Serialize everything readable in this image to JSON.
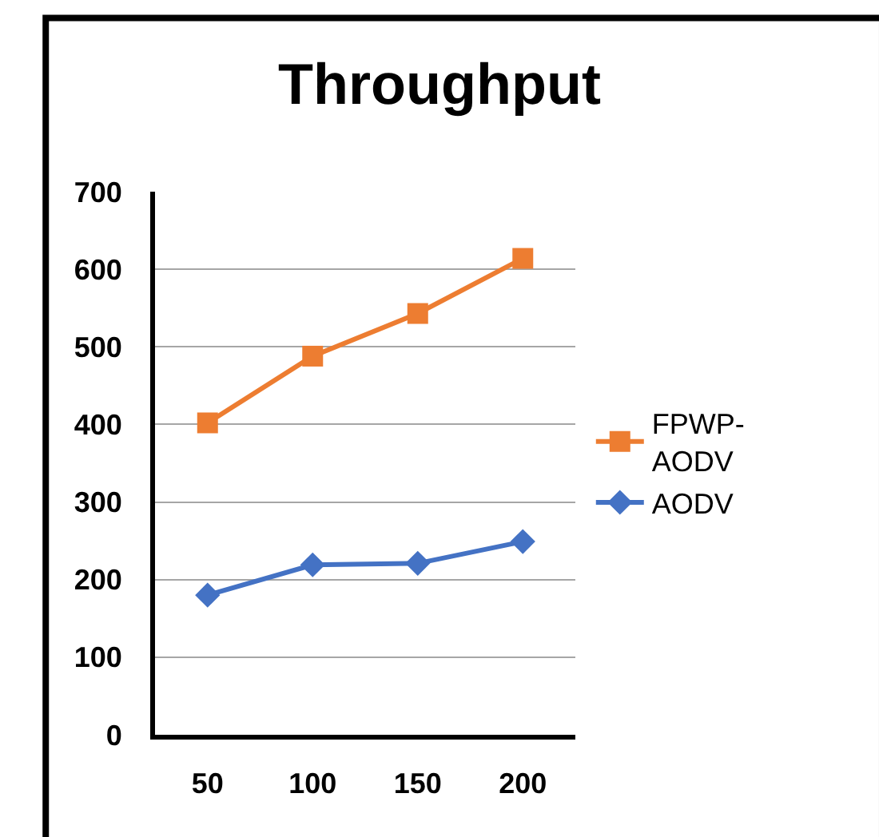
{
  "chart_data": {
    "type": "line",
    "title": "Throughput",
    "categories": [
      "50",
      "100",
      "150",
      "200"
    ],
    "series": [
      {
        "name": "FPWP-AODV",
        "color": "#ed7d31",
        "marker": "square",
        "values": [
          402,
          488,
          543,
          614
        ]
      },
      {
        "name": "AODV",
        "color": "#4472c4",
        "marker": "diamond",
        "values": [
          180,
          219,
          221,
          249
        ]
      }
    ],
    "ylim": [
      0,
      700
    ],
    "yticks": [
      0,
      100,
      200,
      300,
      400,
      500,
      600,
      700
    ],
    "grid": "y",
    "legend": "right",
    "line_style": "solid"
  }
}
